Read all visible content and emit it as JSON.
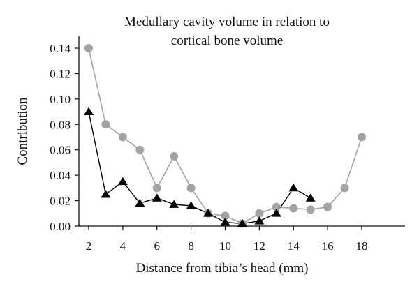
{
  "chart_data": {
    "type": "line",
    "title_lines": [
      "Medullary cavity volume in relation to",
      "cortical bone volume"
    ],
    "xlabel": "Distance from tibia’s head (mm)",
    "ylabel": "Contribution",
    "xlim": [
      1.5,
      20.5
    ],
    "ylim": [
      0,
      0.15
    ],
    "x_ticks": [
      2,
      4,
      6,
      8,
      10,
      12,
      14,
      16,
      18
    ],
    "y_ticks": [
      0.0,
      0.02,
      0.04,
      0.06,
      0.08,
      0.1,
      0.12,
      0.14
    ],
    "y_tick_labels": [
      "0.00",
      "0.02",
      "0.04",
      "0.06",
      "0.08",
      "0.10",
      "0.12",
      "0.14"
    ],
    "grid": false,
    "legend": "none",
    "series": [
      {
        "marker": "circle",
        "color": "#a3a3a3",
        "x": [
          2,
          3,
          4,
          5,
          6,
          7,
          8,
          9,
          10,
          11,
          12,
          13,
          14,
          15,
          16,
          17,
          18
        ],
        "y": [
          0.14,
          0.08,
          0.07,
          0.06,
          0.03,
          0.055,
          0.03,
          0.01,
          0.008,
          0.002,
          0.01,
          0.015,
          0.014,
          0.013,
          0.015,
          0.03,
          0.07
        ]
      },
      {
        "marker": "triangle",
        "color": "#000000",
        "x": [
          2,
          3,
          4,
          5,
          6,
          7,
          8,
          9,
          10,
          11,
          12,
          13,
          14,
          15
        ],
        "y": [
          0.09,
          0.025,
          0.035,
          0.018,
          0.022,
          0.017,
          0.016,
          0.01,
          0.003,
          0.002,
          0.004,
          0.01,
          0.03,
          0.022
        ]
      }
    ]
  }
}
